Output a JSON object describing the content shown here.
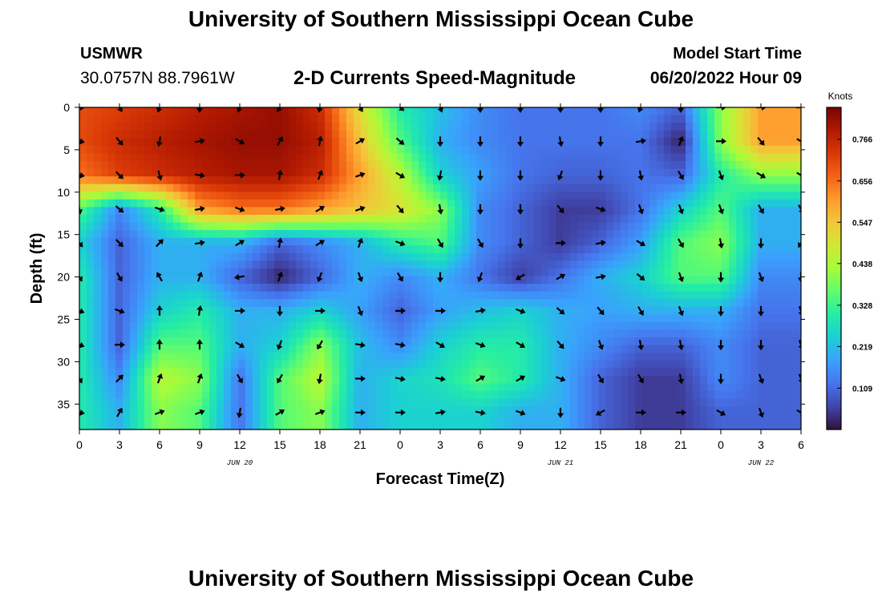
{
  "page": {
    "title": "University of Southern Mississippi Ocean Cube",
    "title_repeat": "University of Southern Mississippi Ocean Cube",
    "station": "USMWR",
    "coordinates": "30.0757N  88.7961W",
    "subtitle": "2-D Currents Speed-Magnitude",
    "model_start_label": "Model Start Time",
    "model_start_value": "06/20/2022 Hour 09"
  },
  "chart_data": {
    "type": "heatmap",
    "title": "2-D Currents Speed-Magnitude",
    "xlabel": "Forecast Time(Z)",
    "ylabel": "Depth (ft)",
    "x_tick_labels": [
      "0",
      "3",
      "6",
      "9",
      "12",
      "15",
      "18",
      "21",
      "0",
      "3",
      "6",
      "9",
      "12",
      "15",
      "18",
      "21",
      "0",
      "3",
      "6"
    ],
    "x_range_hours": [
      0,
      54
    ],
    "date_labels": [
      {
        "text": "JUN 20",
        "at_hour": 12
      },
      {
        "text": "JUN 21",
        "at_hour": 36
      },
      {
        "text": "JUN 22",
        "at_hour": 51
      }
    ],
    "y_ticks": [
      "0",
      "5",
      "10",
      "15",
      "20",
      "25",
      "30",
      "35"
    ],
    "y_range": [
      0,
      38
    ],
    "y_inverted": true,
    "colorbar": {
      "unit": "Knots",
      "ticks": [
        "0.766",
        "0.656",
        "0.547",
        "0.438",
        "0.328",
        "0.219",
        "0.109"
      ],
      "range": [
        0,
        0.85
      ],
      "colors": [
        "#30123b",
        "#4145ab",
        "#4675ed",
        "#39a2fc",
        "#1bcfd4",
        "#24eca6",
        "#61fc6c",
        "#a4fc3b",
        "#d1e834",
        "#f3c63a",
        "#fe9b2d",
        "#f36315",
        "#d93806",
        "#b11901",
        "#7a0403"
      ]
    },
    "time_hours": [
      0,
      3,
      6,
      9,
      12,
      15,
      18,
      21,
      24,
      27,
      30,
      33,
      36,
      39,
      42,
      45,
      48,
      51,
      54
    ],
    "depths_ft": [
      0,
      4,
      8,
      12,
      16,
      20,
      24,
      28,
      32,
      36
    ],
    "speed_knots": [
      [
        0.7,
        0.72,
        0.75,
        0.78,
        0.8,
        0.82,
        0.75,
        0.5,
        0.3,
        0.22,
        0.15,
        0.12,
        0.12,
        0.12,
        0.15,
        0.1,
        0.4,
        0.6,
        0.6
      ],
      [
        0.7,
        0.75,
        0.78,
        0.8,
        0.82,
        0.82,
        0.78,
        0.55,
        0.35,
        0.2,
        0.15,
        0.12,
        0.12,
        0.12,
        0.12,
        0.02,
        0.4,
        0.6,
        0.6
      ],
      [
        0.65,
        0.72,
        0.75,
        0.78,
        0.8,
        0.8,
        0.75,
        0.6,
        0.45,
        0.25,
        0.18,
        0.12,
        0.1,
        0.1,
        0.12,
        0.1,
        0.3,
        0.4,
        0.4
      ],
      [
        0.35,
        0.15,
        0.3,
        0.6,
        0.65,
        0.65,
        0.6,
        0.55,
        0.5,
        0.4,
        0.15,
        0.1,
        0.05,
        0.05,
        0.12,
        0.25,
        0.35,
        0.2,
        0.2
      ],
      [
        0.25,
        0.1,
        0.2,
        0.2,
        0.2,
        0.1,
        0.15,
        0.2,
        0.3,
        0.35,
        0.15,
        0.1,
        0.05,
        0.1,
        0.18,
        0.35,
        0.4,
        0.2,
        0.2
      ],
      [
        0.3,
        0.1,
        0.2,
        0.2,
        0.1,
        0.02,
        0.1,
        0.2,
        0.15,
        0.2,
        0.12,
        0.05,
        0.12,
        0.2,
        0.25,
        0.35,
        0.35,
        0.15,
        0.15
      ],
      [
        0.3,
        0.1,
        0.25,
        0.3,
        0.2,
        0.2,
        0.25,
        0.18,
        0.1,
        0.18,
        0.22,
        0.25,
        0.2,
        0.18,
        0.2,
        0.2,
        0.2,
        0.12,
        0.12
      ],
      [
        0.3,
        0.1,
        0.35,
        0.35,
        0.2,
        0.25,
        0.4,
        0.22,
        0.15,
        0.25,
        0.3,
        0.3,
        0.2,
        0.15,
        0.1,
        0.1,
        0.15,
        0.1,
        0.1
      ],
      [
        0.3,
        0.15,
        0.45,
        0.4,
        0.12,
        0.35,
        0.45,
        0.2,
        0.25,
        0.28,
        0.35,
        0.3,
        0.2,
        0.1,
        0.05,
        0.05,
        0.15,
        0.1,
        0.1
      ],
      [
        0.3,
        0.2,
        0.4,
        0.35,
        0.12,
        0.35,
        0.4,
        0.2,
        0.25,
        0.25,
        0.25,
        0.2,
        0.2,
        0.1,
        0.05,
        0.05,
        0.1,
        0.1,
        0.1
      ]
    ],
    "direction_deg": [
      [
        90,
        150,
        200,
        180,
        200,
        210,
        190,
        150,
        130,
        160,
        180,
        180,
        180,
        180,
        200,
        180,
        90,
        90,
        90
      ],
      [
        100,
        140,
        190,
        80,
        120,
        30,
        10,
        60,
        130,
        180,
        180,
        180,
        170,
        180,
        80,
        20,
        90,
        140,
        120
      ],
      [
        100,
        135,
        165,
        100,
        90,
        10,
        20,
        70,
        120,
        190,
        180,
        180,
        200,
        180,
        170,
        150,
        160,
        120,
        120
      ],
      [
        170,
        130,
        110,
        80,
        110,
        80,
        60,
        70,
        140,
        170,
        180,
        180,
        140,
        110,
        160,
        160,
        160,
        150,
        150
      ],
      [
        140,
        135,
        45,
        80,
        60,
        10,
        60,
        20,
        110,
        150,
        150,
        180,
        90,
        80,
        120,
        150,
        170,
        180,
        210
      ],
      [
        150,
        150,
        330,
        20,
        260,
        20,
        200,
        160,
        150,
        180,
        200,
        240,
        60,
        80,
        130,
        160,
        180,
        160,
        180
      ],
      [
        110,
        110,
        0,
        10,
        90,
        180,
        90,
        160,
        90,
        90,
        80,
        110,
        130,
        140,
        150,
        160,
        180,
        180,
        160
      ],
      [
        110,
        90,
        0,
        0,
        120,
        200,
        210,
        100,
        100,
        120,
        110,
        120,
        140,
        160,
        170,
        170,
        180,
        180,
        160
      ],
      [
        150,
        45,
        20,
        20,
        150,
        210,
        190,
        90,
        100,
        100,
        60,
        60,
        110,
        150,
        150,
        170,
        180,
        160,
        160
      ],
      [
        100,
        30,
        70,
        70,
        190,
        60,
        70,
        90,
        90,
        80,
        100,
        110,
        180,
        240,
        90,
        90,
        120,
        160,
        120
      ]
    ]
  }
}
